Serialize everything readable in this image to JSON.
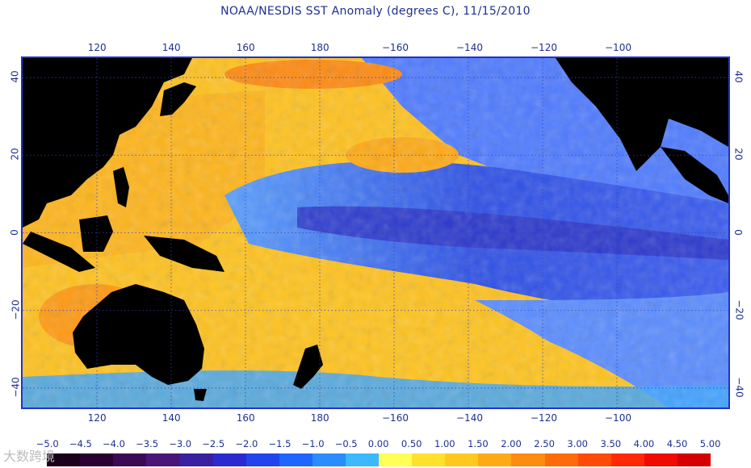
{
  "title": "NOAA/NESDIS SST Anomaly (degrees C), 11/15/2010",
  "map": {
    "lon_range": [
      100,
      290
    ],
    "lat_range": [
      -45,
      45
    ],
    "lon_ticks": [
      {
        "lon": 120,
        "label": "120"
      },
      {
        "lon": 140,
        "label": "140"
      },
      {
        "lon": 160,
        "label": "160"
      },
      {
        "lon": 180,
        "label": "180"
      },
      {
        "lon": 200,
        "label": "−160"
      },
      {
        "lon": 220,
        "label": "−140"
      },
      {
        "lon": 240,
        "label": "−120"
      },
      {
        "lon": 260,
        "label": "−100"
      }
    ],
    "lat_ticks": [
      {
        "lat": 40,
        "label": "40"
      },
      {
        "lat": 20,
        "label": "20"
      },
      {
        "lat": 0,
        "label": "0"
      },
      {
        "lat": -20,
        "label": "−20"
      },
      {
        "lat": -40,
        "label": "−40"
      }
    ],
    "grid": "dotted",
    "land_color": "#000000",
    "frame_color": "#2233cc"
  },
  "colorbar": {
    "labels": [
      "−5.0",
      "−4.5",
      "−4.0",
      "−3.5",
      "−3.0",
      "−2.5",
      "−2.0",
      "−1.5",
      "−1.0",
      "−0.5",
      "0.00",
      "0.50",
      "1.00",
      "1.50",
      "2.00",
      "2.50",
      "3.00",
      "3.50",
      "4.00",
      "4.50",
      "5.00"
    ],
    "colors": [
      "#1a001a",
      "#2b0033",
      "#3a0a55",
      "#4b1477",
      "#3a1fa0",
      "#2a2ad0",
      "#2244ee",
      "#1f66ff",
      "#2a8cff",
      "#3cb8ff",
      "#ffff55",
      "#ffe02a",
      "#ffc81e",
      "#ffaa14",
      "#ff8c0f",
      "#ff6a0a",
      "#ff4a08",
      "#ff2a05",
      "#f00a00",
      "#d40000"
    ]
  },
  "watermark": "大数跨境"
}
